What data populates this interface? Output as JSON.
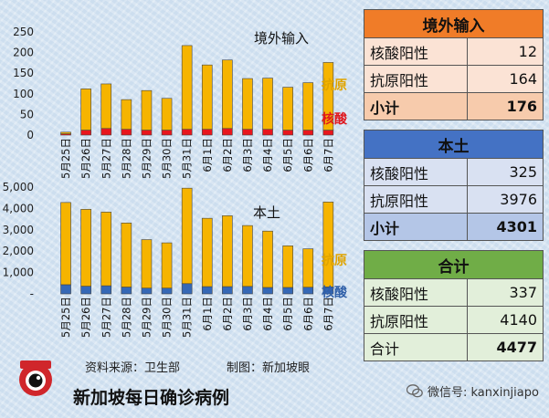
{
  "chart_data": [
    {
      "type": "bar",
      "title": "境外输入",
      "categories": [
        "5月25日",
        "5月26日",
        "5月27日",
        "5月28日",
        "5月29日",
        "5月30日",
        "5月31日",
        "6月1日",
        "6月2日",
        "6月3日",
        "6月4日",
        "6月5日",
        "6月6日",
        "6月7日"
      ],
      "stacked": true,
      "series": [
        {
          "name": "核酸",
          "color": "#e8161d",
          "values": [
            3,
            12,
            16,
            14,
            12,
            12,
            14,
            14,
            16,
            14,
            14,
            12,
            12,
            12
          ]
        },
        {
          "name": "抗原",
          "color": "#f6b400",
          "values": [
            4,
            100,
            108,
            72,
            96,
            77,
            203,
            156,
            166,
            123,
            124,
            104,
            115,
            164
          ]
        }
      ],
      "yticks": [
        "0",
        "50",
        "100",
        "150",
        "200",
        "250"
      ],
      "ylim": [
        0,
        250
      ]
    },
    {
      "type": "bar",
      "title": "本土",
      "categories": [
        "5月25日",
        "5月26日",
        "5月27日",
        "5月28日",
        "5月29日",
        "5月30日",
        "5月31日",
        "6月1日",
        "6月2日",
        "6月3日",
        "6月4日",
        "6月5日",
        "6月6日",
        "6月7日"
      ],
      "stacked": true,
      "series": [
        {
          "name": "核酸",
          "color": "#3568b6",
          "values": [
            430,
            360,
            380,
            320,
            270,
            270,
            480,
            340,
            340,
            350,
            300,
            300,
            310,
            325
          ]
        },
        {
          "name": "抗原",
          "color": "#f6b400",
          "values": [
            3850,
            3600,
            3450,
            3000,
            2270,
            2120,
            4470,
            3200,
            3320,
            2850,
            2640,
            1950,
            1800,
            3976
          ]
        }
      ],
      "yticks": [
        "-",
        "1,000",
        "2,000",
        "3,000",
        "4,000",
        "5,000"
      ],
      "ylim": [
        0,
        5000
      ]
    }
  ],
  "panels": [
    {
      "title": "境外输入",
      "header_color": "#f07c28",
      "row_color": "#fbe3d5",
      "total_color": "#f7cbac",
      "rows": [
        {
          "label": "核酸阳性",
          "value": "12"
        },
        {
          "label": "抗原阳性",
          "value": "164"
        }
      ],
      "total": {
        "label": "小计",
        "value": "176"
      }
    },
    {
      "title": "本土",
      "header_color": "#4472c4",
      "row_color": "#d9e1f2",
      "total_color": "#b4c6e7",
      "rows": [
        {
          "label": "核酸阳性",
          "value": "325"
        },
        {
          "label": "抗原阳性",
          "value": "3976"
        }
      ],
      "total": {
        "label": "小计",
        "value": "4301"
      }
    },
    {
      "title": "合计",
      "header_color": "#70ad47",
      "row_color": "#e2efda",
      "total_color": "#e2efda",
      "rows": [
        {
          "label": "核酸阳性",
          "value": "337"
        },
        {
          "label": "抗原阳性",
          "value": "4140"
        }
      ],
      "total": {
        "label": "合计",
        "value": "4477"
      }
    }
  ],
  "footer": {
    "source_label": "资料来源：卫生部",
    "maker_label": "制图：新加坡眼",
    "title": "新加坡每日确诊病例",
    "watermark": "微信号: kanxinjiapo",
    "logo_text": "新加坡眼"
  }
}
